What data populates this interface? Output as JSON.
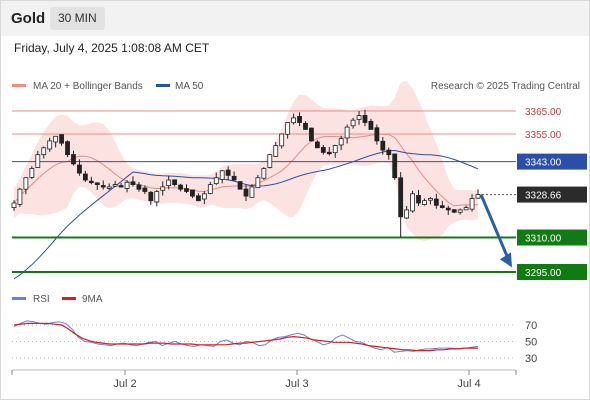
{
  "header": {
    "symbol": "Gold",
    "timeframe": "30 MIN",
    "datetime": "Friday, July 4, 2025 1:08:08 AM CET"
  },
  "legend": {
    "ma_bb": "MA 20 + Bollinger Bands",
    "ma50": "MA 50",
    "credit": "Research © 2025 Trading Central"
  },
  "rsi_legend": {
    "rsi": "RSI",
    "ma9": "9MA"
  },
  "colors": {
    "resistance": "#f28b82",
    "pivot": "#2b4fa8",
    "support": "#127a12",
    "candle": "#222222",
    "band_fill": "#fcd6d6",
    "ma20": "#e88a8a",
    "ma50": "#2b4fa8",
    "rsi": "#6b7fe0",
    "rsi_ma": "#d91e1e",
    "arrow": "#2c5f9e"
  },
  "chart_data": {
    "type": "candlestick",
    "ylim": [
      3290,
      3370
    ],
    "levels": [
      {
        "label": "3365.00",
        "value": 3365,
        "kind": "resistance"
      },
      {
        "label": "3355.00",
        "value": 3355,
        "kind": "resistance"
      },
      {
        "label": "3343.00",
        "value": 3343,
        "kind": "pivot"
      },
      {
        "label": "3310.00",
        "value": 3310,
        "kind": "support"
      },
      {
        "label": "3295.00",
        "value": 3295,
        "kind": "support"
      }
    ],
    "last_price": {
      "label": "3328.66",
      "value": 3328.66
    },
    "forecast_arrow": {
      "from": 3328.66,
      "to": 3297
    },
    "x_ticks": [
      "Jul 2",
      "Jul 3",
      "Jul 4"
    ],
    "price_path": [
      3325,
      3331,
      3336,
      3340,
      3346,
      3349,
      3352,
      3354,
      3351,
      3346,
      3342,
      3338,
      3335,
      3334,
      3333,
      3332,
      3332,
      3333,
      3332,
      3334,
      3333,
      3331,
      3330,
      3326,
      3330,
      3332,
      3335,
      3333,
      3331,
      3330,
      3328,
      3326,
      3329,
      3333,
      3336,
      3339,
      3337,
      3335,
      3331,
      3328,
      3332,
      3336,
      3340,
      3346,
      3350,
      3355,
      3360,
      3362,
      3360,
      3357,
      3352,
      3349,
      3347,
      3347,
      3350,
      3353,
      3358,
      3361,
      3363,
      3360,
      3357,
      3352,
      3348,
      3346,
      3336,
      3319,
      3322,
      3329,
      3325,
      3326,
      3327,
      3324,
      3323,
      3322,
      3321,
      3322,
      3323,
      3327,
      3328.66
    ],
    "rsi": {
      "levels": [
        70,
        50,
        30
      ],
      "ylim": [
        20,
        85
      ],
      "values": [
        68,
        72,
        75,
        74,
        72,
        71,
        73,
        74,
        72,
        65,
        55,
        50,
        49,
        47,
        46,
        45,
        47,
        48,
        46,
        45,
        47,
        49,
        50,
        45,
        48,
        50,
        47,
        45,
        44,
        46,
        45,
        44,
        50,
        52,
        48,
        46,
        50,
        49,
        45,
        46,
        52,
        55,
        56,
        58,
        60,
        58,
        53,
        50,
        46,
        48,
        55,
        58,
        54,
        50,
        49,
        45,
        42,
        40,
        43,
        37,
        38,
        39,
        38,
        40,
        41,
        41,
        42,
        42,
        42,
        41,
        42,
        43,
        44
      ],
      "ma9": [
        70,
        71,
        72,
        72,
        72,
        72,
        71,
        70,
        65,
        59,
        54,
        51,
        49,
        48,
        47,
        47,
        47,
        47,
        47,
        47,
        48,
        48,
        48,
        47,
        47,
        47,
        47,
        46,
        46,
        46,
        46,
        46,
        47,
        48,
        48,
        49,
        50,
        51,
        52,
        53,
        55,
        56,
        55,
        54,
        52,
        51,
        50,
        49,
        49,
        49,
        48,
        47,
        45,
        44,
        43,
        42,
        41,
        40,
        40,
        39,
        39,
        39,
        40,
        40,
        41,
        41,
        42,
        42,
        42
      ]
    }
  }
}
